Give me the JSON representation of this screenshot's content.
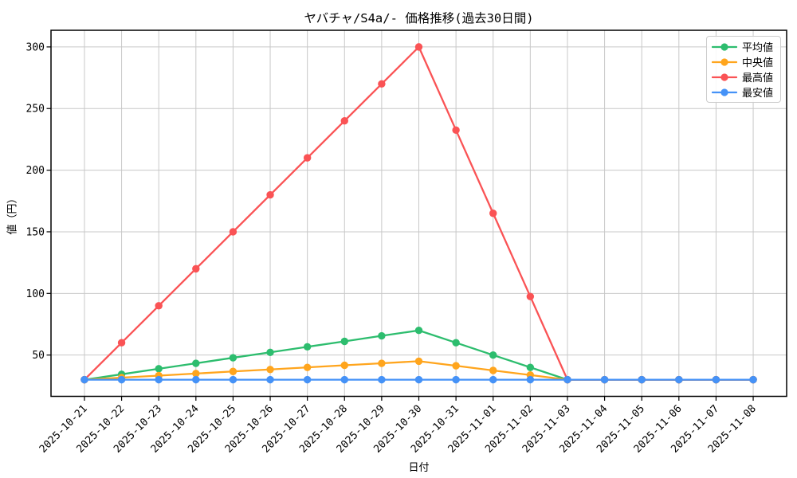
{
  "chart_data": {
    "type": "line",
    "title": "ヤバチャ/S4a/- 価格推移(過去30日間)",
    "xlabel": "日付",
    "ylabel": "値（円）",
    "x": [
      "2025-10-21",
      "2025-10-22",
      "2025-10-23",
      "2025-10-24",
      "2025-10-25",
      "2025-10-26",
      "2025-10-27",
      "2025-10-28",
      "2025-10-29",
      "2025-10-30",
      "2025-10-31",
      "2025-11-01",
      "2025-11-02",
      "2025-11-03",
      "2025-11-04",
      "2025-11-05",
      "2025-11-06",
      "2025-11-07",
      "2025-11-08"
    ],
    "series": [
      {
        "key": "average",
        "name": "平均値",
        "color": "#2dbd6e",
        "values": [
          30,
          34.4,
          38.9,
          43.3,
          47.8,
          52.2,
          56.7,
          61.1,
          65.6,
          70,
          60,
          50,
          40,
          30,
          30,
          30,
          30,
          30,
          30
        ]
      },
      {
        "key": "median",
        "name": "中央値",
        "color": "#ffa51d",
        "values": [
          30,
          31.7,
          33.3,
          35,
          36.7,
          38.3,
          40,
          41.7,
          43.3,
          45,
          41.3,
          37.5,
          33.8,
          30,
          30,
          30,
          30,
          30,
          30
        ]
      },
      {
        "key": "max",
        "name": "最高値",
        "color": "#fa5355",
        "values": [
          30,
          60,
          90,
          120,
          150,
          180,
          210,
          240,
          270,
          300,
          232.5,
          165,
          97.5,
          30,
          30,
          30,
          30,
          30,
          30
        ]
      },
      {
        "key": "min",
        "name": "最安値",
        "color": "#4592f7",
        "values": [
          30,
          30,
          30,
          30,
          30,
          30,
          30,
          30,
          30,
          30,
          30,
          30,
          30,
          30,
          30,
          30,
          30,
          30,
          30
        ]
      }
    ],
    "yticks": [
      50,
      100,
      150,
      200,
      250,
      300
    ],
    "ylim": [
      16.5,
      313.5
    ],
    "grid": true,
    "grid_color": "#c8c8c8",
    "axis_color": "#000000",
    "legend_position": "upper-right"
  }
}
